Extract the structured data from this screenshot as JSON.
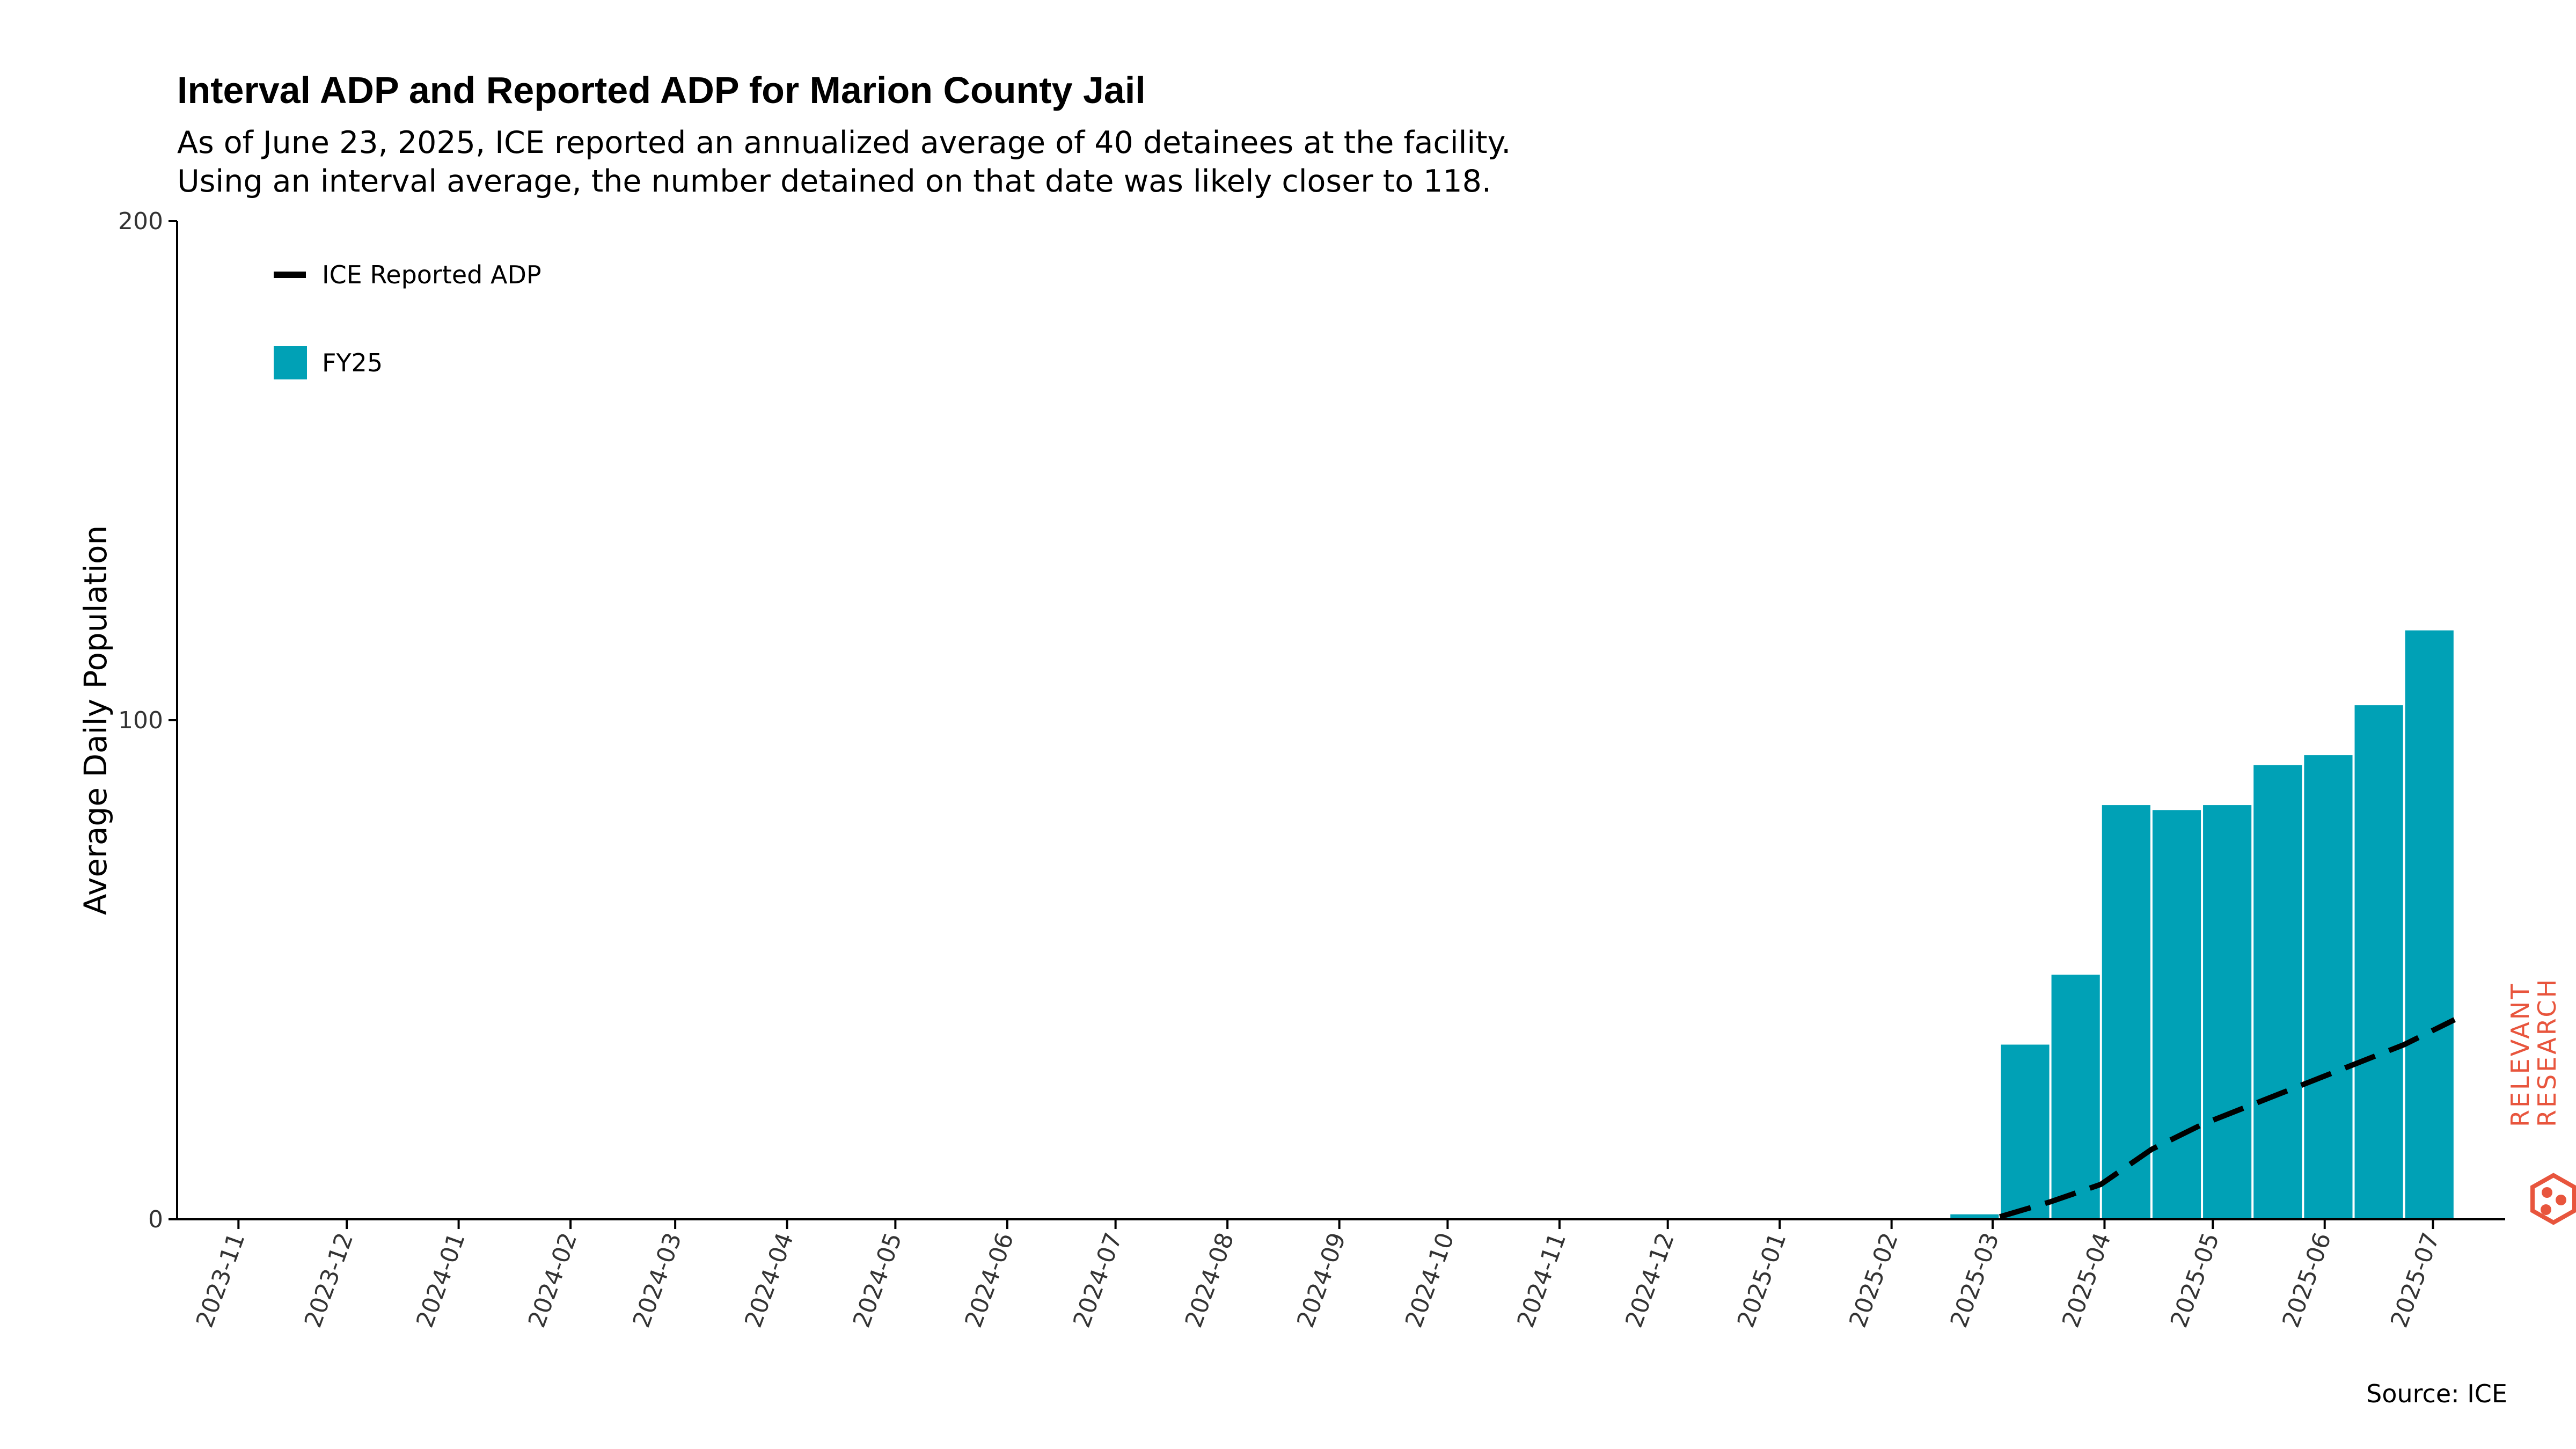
{
  "title": "Interval ADP and Reported ADP for Marion County Jail",
  "subtitle_line1": "As of June 23, 2025, ICE reported an annualized average of 40 detainees at the facility.",
  "subtitle_line2": "Using an interval average, the number detained on that date was likely closer to 118.",
  "source": "Source: ICE",
  "brand": {
    "line1": "RELEVANT",
    "line2": "RESEARCH",
    "color": "#e8553d"
  },
  "colors": {
    "bar": "#00a1b6",
    "line": "#000000",
    "axis": "#000000"
  },
  "chart_data": {
    "type": "bar",
    "title": "Interval ADP and Reported ADP for Marion County Jail",
    "ylabel": "Average Daily Population",
    "xlabel": "",
    "ylim": [
      0,
      200
    ],
    "yticks": [
      0,
      100,
      200
    ],
    "x_ticks": [
      "2023-11",
      "2023-12",
      "2024-01",
      "2024-02",
      "2024-03",
      "2024-04",
      "2024-05",
      "2024-06",
      "2024-07",
      "2024-08",
      "2024-09",
      "2024-10",
      "2024-11",
      "2024-12",
      "2025-01",
      "2025-02",
      "2025-03",
      "2025-04",
      "2025-05",
      "2025-06",
      "2025-07"
    ],
    "x_range": [
      "2023-10-15",
      "2025-07-21"
    ],
    "legend": {
      "position": "top-left",
      "entries": [
        {
          "label": "ICE Reported ADP",
          "kind": "dashed-line"
        },
        {
          "label": "FY25",
          "kind": "bar"
        }
      ]
    },
    "grid": false,
    "series": [
      {
        "name": "FY25",
        "kind": "bar",
        "bars": [
          {
            "start": "2025-02-17",
            "end": "2025-03-03",
            "value": 1
          },
          {
            "start": "2025-03-03",
            "end": "2025-03-17",
            "value": 35
          },
          {
            "start": "2025-03-17",
            "end": "2025-03-31",
            "value": 49
          },
          {
            "start": "2025-03-31",
            "end": "2025-04-14",
            "value": 83
          },
          {
            "start": "2025-04-14",
            "end": "2025-04-28",
            "value": 82
          },
          {
            "start": "2025-04-28",
            "end": "2025-05-12",
            "value": 83
          },
          {
            "start": "2025-05-12",
            "end": "2025-05-26",
            "value": 91
          },
          {
            "start": "2025-05-26",
            "end": "2025-06-09",
            "value": 93
          },
          {
            "start": "2025-06-09",
            "end": "2025-06-23",
            "value": 103
          },
          {
            "start": "2025-06-23",
            "end": "2025-07-07",
            "value": 118
          }
        ]
      },
      {
        "name": "ICE Reported ADP",
        "kind": "dashed-line",
        "points": [
          {
            "date": "2025-03-03",
            "value": 0.5
          },
          {
            "date": "2025-03-17",
            "value": 3.5
          },
          {
            "date": "2025-03-31",
            "value": 7
          },
          {
            "date": "2025-04-14",
            "value": 14
          },
          {
            "date": "2025-04-28",
            "value": 19
          },
          {
            "date": "2025-05-12",
            "value": 23
          },
          {
            "date": "2025-05-26",
            "value": 27
          },
          {
            "date": "2025-06-09",
            "value": 31
          },
          {
            "date": "2025-06-23",
            "value": 35
          },
          {
            "date": "2025-07-07",
            "value": 40
          }
        ]
      }
    ]
  }
}
